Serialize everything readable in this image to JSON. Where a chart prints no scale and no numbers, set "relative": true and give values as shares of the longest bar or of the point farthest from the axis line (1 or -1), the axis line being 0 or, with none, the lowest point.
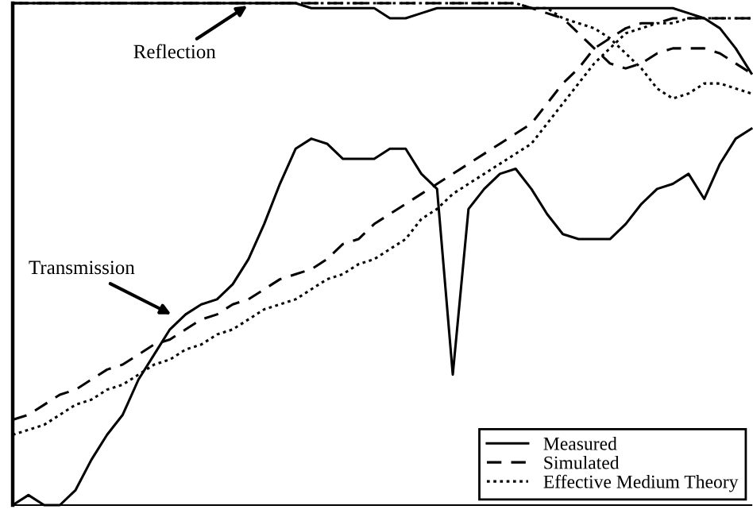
{
  "chart_data": {
    "type": "line",
    "relative": true,
    "legend": "bottom right",
    "categories": [
      null,
      null,
      null,
      null,
      null,
      null,
      null,
      null,
      null,
      null,
      null,
      null,
      null,
      null,
      null,
      null,
      null,
      null,
      null,
      null,
      null,
      null,
      null,
      null,
      null,
      null,
      null,
      null,
      null,
      null,
      null,
      null,
      null,
      null,
      null,
      null,
      null,
      null,
      null,
      null,
      null,
      null,
      null,
      null,
      null,
      null,
      null,
      null
    ],
    "annotations": [
      "Reflection",
      "Transmission"
    ],
    "series": [
      {
        "name": "Measured",
        "color": "#000000",
        "line_style": "solid",
        "values": [
          0,
          0.02,
          0,
          0,
          0.03,
          0.09,
          0.14,
          0.18,
          0.25,
          0.3,
          0.35,
          0.38,
          0.4,
          0.41,
          0.44,
          0.49,
          0.56,
          0.64,
          0.71,
          0.73,
          0.72,
          0.69,
          0.69,
          0.69,
          0.71,
          0.71,
          0.66,
          0.63,
          0.26,
          0.59,
          0.63,
          0.66,
          0.67,
          0.63,
          0.58,
          0.54,
          0.53,
          0.53,
          0.53,
          0.56,
          0.6,
          0.63,
          0.64,
          0.66,
          0.61,
          0.68,
          0.73,
          0.75
        ]
      },
      {
        "name": "Simulated",
        "color": "#000000",
        "line_style": "dashed",
        "values": [
          0.17,
          0.18,
          0.2,
          0.22,
          0.23,
          0.25,
          0.27,
          0.28,
          0.3,
          0.32,
          0.33,
          0.35,
          0.37,
          0.38,
          0.4,
          0.41,
          0.43,
          0.45,
          0.46,
          0.47,
          0.49,
          0.52,
          0.53,
          0.56,
          0.58,
          0.6,
          0.62,
          0.64,
          0.66,
          0.68,
          0.7,
          0.72,
          0.74,
          0.76,
          0.8,
          0.84,
          0.87,
          0.91,
          0.93,
          0.95,
          0.96,
          0.96,
          0.97,
          0.97,
          0.97,
          0.97,
          0.97,
          0.97
        ]
      },
      {
        "name": "Effective Medium Theory",
        "color": "#000000",
        "line_style": "dotted",
        "values": [
          0.14,
          0.15,
          0.16,
          0.18,
          0.2,
          0.21,
          0.23,
          0.24,
          0.26,
          0.28,
          0.29,
          0.31,
          0.32,
          0.34,
          0.35,
          0.37,
          0.39,
          0.4,
          0.41,
          0.43,
          0.45,
          0.46,
          0.48,
          0.49,
          0.51,
          0.53,
          0.57,
          0.59,
          0.62,
          0.64,
          0.66,
          0.68,
          0.7,
          0.72,
          0.76,
          0.8,
          0.84,
          0.88,
          0.91,
          0.94,
          0.95,
          0.96,
          0.96,
          0.97,
          0.97,
          0.97,
          0.97,
          0.97
        ]
      },
      {
        "color": "#000000",
        "line_style": "solid",
        "values": [
          1,
          1,
          1,
          1,
          1,
          1,
          1,
          1,
          1,
          1,
          1,
          1,
          1,
          1,
          1,
          1,
          1,
          1,
          1,
          0.99,
          0.99,
          0.99,
          0.99,
          0.99,
          0.97,
          0.97,
          0.98,
          0.99,
          0.99,
          0.99,
          0.99,
          0.99,
          0.99,
          0.99,
          0.99,
          0.99,
          0.99,
          0.99,
          0.99,
          0.99,
          0.99,
          0.99,
          0.99,
          0.98,
          0.97,
          0.95,
          0.91,
          0.86
        ]
      },
      {
        "color": "#000000",
        "line_style": "dashed",
        "values": [
          1,
          1,
          1,
          1,
          1,
          1,
          1,
          1,
          1,
          1,
          1,
          1,
          1,
          1,
          1,
          1,
          1,
          1,
          1,
          1,
          1,
          1,
          1,
          1,
          1,
          1,
          1,
          1,
          1,
          1,
          1,
          1,
          1,
          0.99,
          0.98,
          0.97,
          0.94,
          0.91,
          0.88,
          0.87,
          0.88,
          0.9,
          0.91,
          0.91,
          0.91,
          0.9,
          0.88,
          0.86
        ]
      },
      {
        "color": "#000000",
        "line_style": "dotted",
        "values": [
          1,
          1,
          1,
          1,
          1,
          1,
          1,
          1,
          1,
          1,
          1,
          1,
          1,
          1,
          1,
          1,
          1,
          1,
          1,
          1,
          1,
          1,
          1,
          1,
          1,
          1,
          1,
          1,
          1,
          1,
          1,
          1,
          1,
          0.99,
          0.99,
          0.97,
          0.96,
          0.95,
          0.93,
          0.9,
          0.87,
          0.83,
          0.81,
          0.82,
          0.84,
          0.84,
          0.83,
          0.82
        ]
      }
    ]
  }
}
